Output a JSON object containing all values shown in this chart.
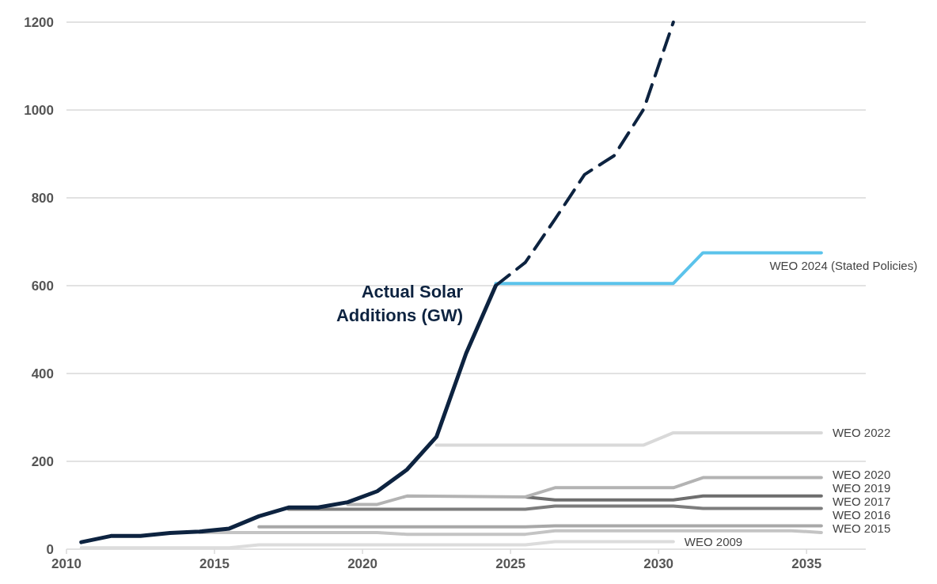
{
  "chart_data": {
    "type": "line",
    "xlim": [
      2010,
      2037
    ],
    "ylim": [
      0,
      1200
    ],
    "xticks": [
      2010,
      2015,
      2020,
      2025,
      2030,
      2035
    ],
    "yticks": [
      0,
      200,
      400,
      600,
      800,
      1000,
      1200
    ],
    "grid": "y",
    "line_style": "solid",
    "marker": "none",
    "series": [
      {
        "name": "WEO 2009",
        "color": "#dcdcdc",
        "x": [
          2010.5,
          2015.5,
          2016.5,
          2025.5,
          2026.5,
          2030.5
        ],
        "values": [
          3,
          3,
          10,
          10,
          17,
          17
        ]
      },
      {
        "name": "WEO 2015",
        "color": "#c4c4c4",
        "x": [
          2014.5,
          2020.5,
          2021.5,
          2025.5,
          2026.5,
          2034.5,
          2035.5
        ],
        "values": [
          38,
          38,
          34,
          34,
          42,
          42,
          38
        ]
      },
      {
        "name": "WEO 2016",
        "color": "#a8a8a8",
        "x": [
          2016.5,
          2025.5,
          2026.5,
          2030.5,
          2031.5,
          2035.5
        ],
        "values": [
          51,
          51,
          53,
          53,
          53,
          53
        ]
      },
      {
        "name": "WEO 2017",
        "color": "#7d7d7d",
        "x": [
          2017.5,
          2025.5,
          2026.5,
          2030.5,
          2031.5,
          2035.5
        ],
        "values": [
          91,
          91,
          98,
          98,
          93,
          93
        ]
      },
      {
        "name": "WEO 2019",
        "color": "#6e6e6e",
        "x": [
          2025.5,
          2026.5,
          2030.5,
          2031.5,
          2035.5
        ],
        "values": [
          119,
          112,
          112,
          121,
          121
        ]
      },
      {
        "name": "WEO 2020",
        "color": "#b3b3b3",
        "x": [
          2019.5,
          2020.5,
          2021.5,
          2025.5,
          2026.5,
          2030.5,
          2031.5,
          2035.5
        ],
        "values": [
          102,
          102,
          121,
          119,
          140,
          140,
          163,
          163
        ]
      },
      {
        "name": "WEO 2022",
        "color": "#d9d9d9",
        "x": [
          2022.5,
          2029.5,
          2030.5,
          2035.5
        ],
        "values": [
          237,
          237,
          265,
          265
        ]
      },
      {
        "name": "WEO 2024 (Stated Policies)",
        "color": "#5bc3eb",
        "x": [
          2024.5,
          2030.5,
          2031.5,
          2035.5
        ],
        "values": [
          605,
          605,
          675,
          675
        ]
      },
      {
        "color": "#0d2340",
        "line_style": "dashed",
        "x": [
          2024.5,
          2025.5,
          2026.5,
          2027.5,
          2028.5,
          2029.5,
          2030.5
        ],
        "values": [
          600,
          653,
          751,
          853,
          896,
          1002,
          1200
        ]
      },
      {
        "name": "Actual Solar Additions (GW)",
        "color": "#0d2340",
        "x": [
          2010.5,
          2011.5,
          2012.5,
          2013.5,
          2014.5,
          2015.5,
          2016.5,
          2017.5,
          2018.5,
          2019.5,
          2020.5,
          2021.5,
          2022.5,
          2023.5,
          2024.5
        ],
        "values": [
          16,
          30,
          30,
          37,
          40,
          47,
          75,
          95,
          95,
          107,
          132,
          181,
          256,
          446,
          600
        ]
      }
    ]
  }
}
